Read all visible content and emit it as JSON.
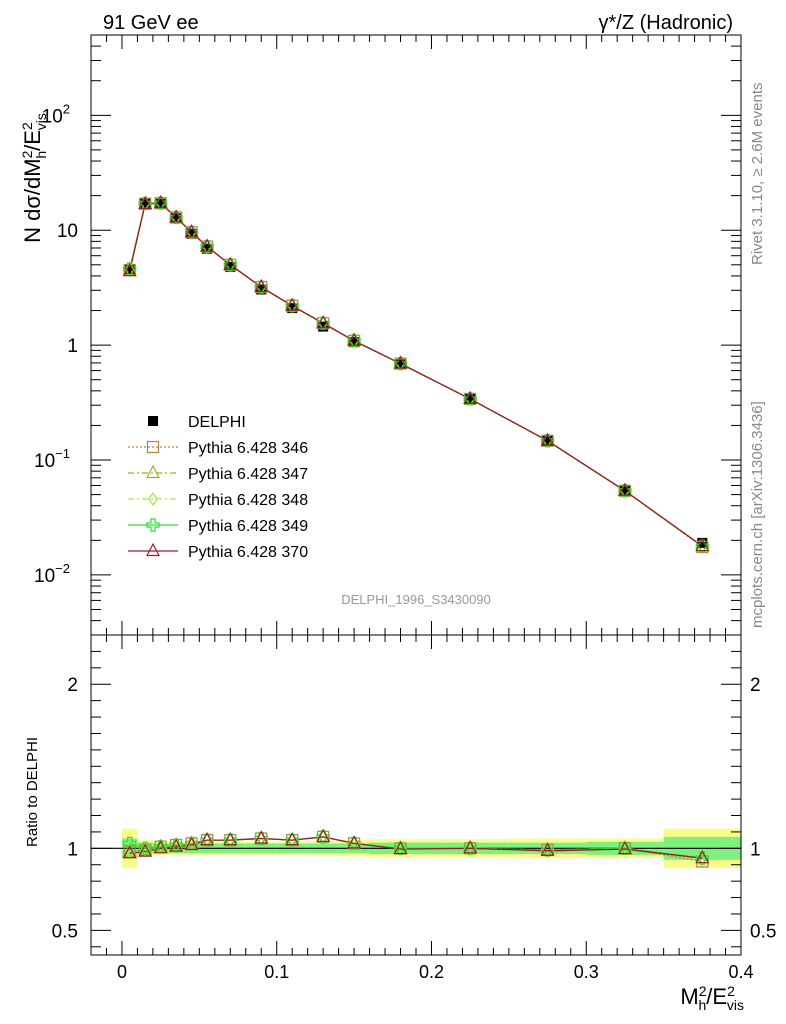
{
  "header": {
    "left": "91 GeV ee",
    "right": "γ*/Z (Hadronic)"
  },
  "side_labels": {
    "rivet": "Rivet 3.1.10, ≥ 2.6M events",
    "mcplots": "mcplots.cern.ch [arXiv:1306.3436]"
  },
  "analysis_tag": "DELPHI_1996_S3430090",
  "colors": {
    "data": "#000000",
    "p346": "#b5834a",
    "p347": "#9ab51c",
    "p348": "#a6e63a",
    "p349": "#33dd33",
    "p370": "#9b1b2a",
    "band_inner": "#7ef07e",
    "band_outer": "#fbfb8c"
  },
  "chart_data": [
    {
      "type": "scatter",
      "name": "main",
      "ylabel": "N dσ/dM_h^2/E_vis^2",
      "yscale": "log",
      "xlim": [
        -0.02,
        0.4
      ],
      "ylim": [
        0.003,
        500
      ],
      "y_ticks": [
        "10^-2",
        "10^-1",
        "1",
        "10",
        "10^2"
      ],
      "x": [
        0.005,
        0.015,
        0.025,
        0.035,
        0.045,
        0.055,
        0.07,
        0.09,
        0.11,
        0.13,
        0.15,
        0.18,
        0.225,
        0.275,
        0.325,
        0.375
      ],
      "series": [
        {
          "name": "DELPHI",
          "marker": "square",
          "values": [
            4.6,
            17.2,
            17.0,
            12.7,
            9.3,
            6.9,
            4.8,
            3.05,
            2.1,
            1.45,
            1.06,
            0.68,
            0.34,
            0.148,
            0.054,
            0.019
          ]
        },
        {
          "name": "Pythia 6.428 346",
          "marker": "open-square",
          "values": [
            4.5,
            17.0,
            17.2,
            12.9,
            9.6,
            7.2,
            5.0,
            3.2,
            2.2,
            1.55,
            1.09,
            0.69,
            0.34,
            0.147,
            0.054,
            0.0175
          ]
        },
        {
          "name": "Pythia 6.428 347",
          "marker": "open-triangle",
          "values": [
            4.5,
            17.0,
            17.2,
            12.9,
            9.6,
            7.2,
            5.0,
            3.2,
            2.2,
            1.55,
            1.09,
            0.69,
            0.34,
            0.147,
            0.054,
            0.0178
          ]
        },
        {
          "name": "Pythia 6.428 348",
          "marker": "open-diamond",
          "values": [
            4.5,
            17.0,
            17.2,
            12.9,
            9.6,
            7.2,
            5.0,
            3.2,
            2.2,
            1.55,
            1.09,
            0.69,
            0.34,
            0.147,
            0.054,
            0.0178
          ]
        },
        {
          "name": "Pythia 6.428 349",
          "marker": "open-cross",
          "values": [
            4.6,
            17.1,
            17.2,
            12.9,
            9.6,
            7.2,
            5.0,
            3.2,
            2.2,
            1.55,
            1.09,
            0.69,
            0.34,
            0.147,
            0.054,
            0.0178
          ]
        },
        {
          "name": "Pythia 6.428 370",
          "marker": "open-triangle",
          "values": [
            4.4,
            16.9,
            17.2,
            12.9,
            9.6,
            7.2,
            5.0,
            3.2,
            2.2,
            1.55,
            1.09,
            0.69,
            0.34,
            0.147,
            0.054,
            0.0178
          ]
        }
      ]
    },
    {
      "type": "line",
      "name": "ratio",
      "ylabel": "Ratio to DELPHI",
      "xlabel": "M_h^2/E_vis^2",
      "xlim": [
        -0.02,
        0.4
      ],
      "ylim": [
        0.35,
        2.3
      ],
      "y_ticks": [
        "0.5",
        "1",
        "2"
      ],
      "x_ticks": [
        "0",
        "0.1",
        "0.2",
        "0.3",
        "0.4"
      ],
      "bins": [
        [
          0.0,
          0.01
        ],
        [
          0.01,
          0.02
        ],
        [
          0.02,
          0.03
        ],
        [
          0.03,
          0.04
        ],
        [
          0.04,
          0.05
        ],
        [
          0.05,
          0.06
        ],
        [
          0.06,
          0.08
        ],
        [
          0.08,
          0.1
        ],
        [
          0.1,
          0.12
        ],
        [
          0.12,
          0.14
        ],
        [
          0.14,
          0.16
        ],
        [
          0.16,
          0.2
        ],
        [
          0.2,
          0.25
        ],
        [
          0.25,
          0.3
        ],
        [
          0.3,
          0.35
        ],
        [
          0.35,
          0.4
        ]
      ],
      "band_inner": [
        0.06,
        0.035,
        0.03,
        0.03,
        0.03,
        0.03,
        0.03,
        0.03,
        0.03,
        0.03,
        0.03,
        0.035,
        0.035,
        0.035,
        0.04,
        0.07
      ],
      "band_outer": [
        0.12,
        0.05,
        0.04,
        0.04,
        0.04,
        0.04,
        0.04,
        0.04,
        0.04,
        0.045,
        0.05,
        0.055,
        0.055,
        0.06,
        0.06,
        0.12
      ],
      "x": [
        0.005,
        0.015,
        0.025,
        0.035,
        0.045,
        0.055,
        0.07,
        0.09,
        0.11,
        0.13,
        0.15,
        0.18,
        0.225,
        0.275,
        0.325,
        0.375
      ],
      "series": [
        {
          "name": "Pythia 6.428 346",
          "values": [
            0.98,
            0.99,
            1.01,
            1.02,
            1.03,
            1.05,
            1.05,
            1.06,
            1.05,
            1.07,
            1.03,
            1.0,
            1.0,
            0.99,
            1.0,
            0.92
          ]
        },
        {
          "name": "Pythia 6.428 347",
          "values": [
            0.98,
            0.99,
            1.01,
            1.02,
            1.03,
            1.05,
            1.05,
            1.06,
            1.05,
            1.07,
            1.03,
            1.0,
            1.0,
            0.99,
            1.0,
            0.94
          ]
        },
        {
          "name": "Pythia 6.428 348",
          "values": [
            0.98,
            0.99,
            1.01,
            1.02,
            1.03,
            1.05,
            1.05,
            1.06,
            1.05,
            1.07,
            1.03,
            1.0,
            1.0,
            0.99,
            1.0,
            0.94
          ]
        },
        {
          "name": "Pythia 6.428 349",
          "values": [
            1.03,
            1.0,
            1.01,
            1.02,
            1.03,
            1.05,
            1.05,
            1.06,
            1.05,
            1.07,
            1.03,
            1.0,
            1.0,
            0.99,
            1.0,
            0.94
          ]
        },
        {
          "name": "Pythia 6.428 370",
          "values": [
            0.97,
            0.98,
            1.0,
            1.01,
            1.02,
            1.05,
            1.05,
            1.06,
            1.05,
            1.07,
            1.03,
            0.995,
            1.0,
            0.985,
            0.995,
            0.94
          ]
        }
      ]
    }
  ]
}
